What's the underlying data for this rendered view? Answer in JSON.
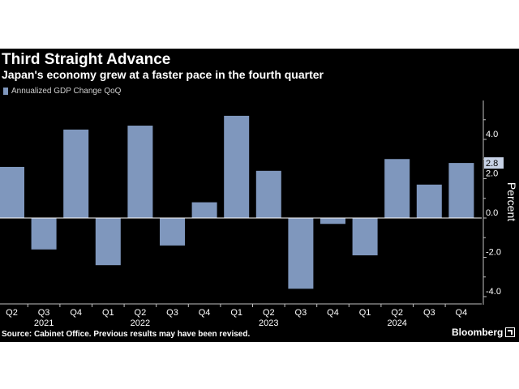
{
  "title": "Third Straight Advance",
  "subtitle": "Japan's economy grew at a faster pace in the fourth quarter",
  "legend_label": "Annualized GDP Change QoQ",
  "source": "Source: Cabinet Office. Previous results may have been revised.",
  "brand": "Bloomberg",
  "colors": {
    "bar": "#7f97bd",
    "background": "#000000",
    "text": "#ffffff",
    "zero_line": "#ffffff"
  },
  "chart_data": {
    "type": "bar",
    "categories": [
      "Q2",
      "Q3",
      "Q4",
      "Q1",
      "Q2",
      "Q3",
      "Q4",
      "Q1",
      "Q2",
      "Q3",
      "Q4",
      "Q1",
      "Q2",
      "Q3",
      "Q4"
    ],
    "year_labels": [
      {
        "label": "2021",
        "index": 1
      },
      {
        "label": "2022",
        "index": 4
      },
      {
        "label": "2023",
        "index": 8
      },
      {
        "label": "2024",
        "index": 12
      }
    ],
    "series": [
      {
        "values": [
          2.6,
          -1.6,
          4.5,
          -2.4,
          4.7,
          -1.4,
          0.8,
          5.2,
          2.4,
          -3.6,
          -0.3,
          -1.9,
          3.0,
          1.7,
          2.8
        ]
      }
    ],
    "ylabel": "Percent",
    "ylim": [
      -4.0,
      6.0
    ],
    "yticks": [
      -4.0,
      -2.0,
      0.0,
      2.0,
      4.0
    ],
    "ytick_labels": [
      "-4.0",
      "-2.0",
      "0.0",
      "2.0",
      "4.0"
    ],
    "last_value_label": "2.8",
    "grid": false
  }
}
